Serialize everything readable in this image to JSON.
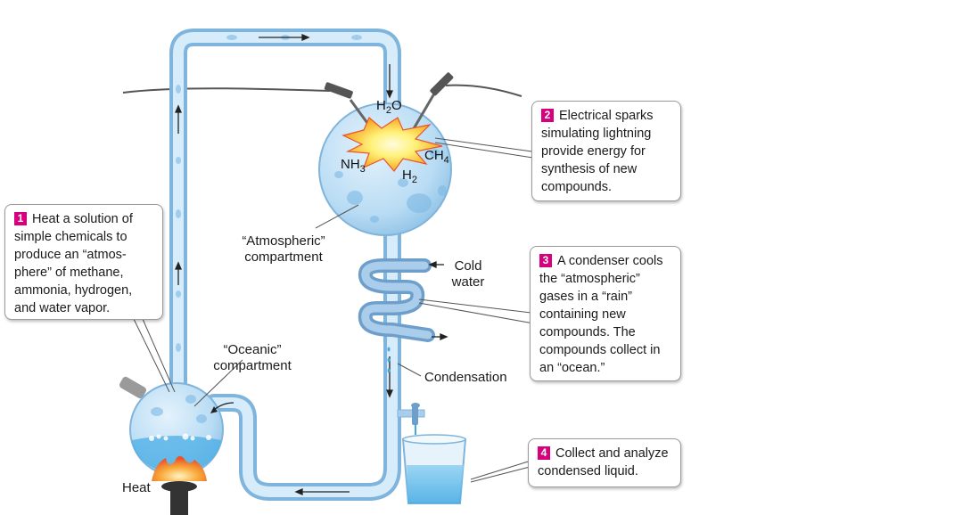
{
  "callouts": [
    {
      "number": "1",
      "text": "Heat a solution of simple chemicals to produce an “atmos-phere” of methane, ammonia, hydrogen, and water vapor."
    },
    {
      "number": "2",
      "text": "Electrical sparks simulating lightning provide energy for synthesis of new compounds."
    },
    {
      "number": "3",
      "text": "A condenser cools the “atmospheric” gases in a “rain” containing new compounds. The compounds collect in an “ocean.”"
    },
    {
      "number": "4",
      "text": "Collect and analyze condensed liquid."
    }
  ],
  "labels": {
    "atmospheric": "“Atmospheric” compartment",
    "oceanic": "“Oceanic” compartment",
    "cold_water": "Cold water",
    "condensation": "Condensation",
    "heat": "Heat"
  },
  "chemicals": {
    "water": {
      "base": "H",
      "sub": "2",
      "rest": "O"
    },
    "ammonia": {
      "base": "NH",
      "sub": "3",
      "rest": ""
    },
    "methane": {
      "base": "CH",
      "sub": "4",
      "rest": ""
    },
    "hydrogen": {
      "base": "H",
      "sub": "2",
      "rest": ""
    }
  },
  "colors": {
    "glass": "#b8daf2",
    "glass_edge": "#7fb4dc",
    "callout_number": "#d6007e",
    "spark": "#f7a823"
  }
}
